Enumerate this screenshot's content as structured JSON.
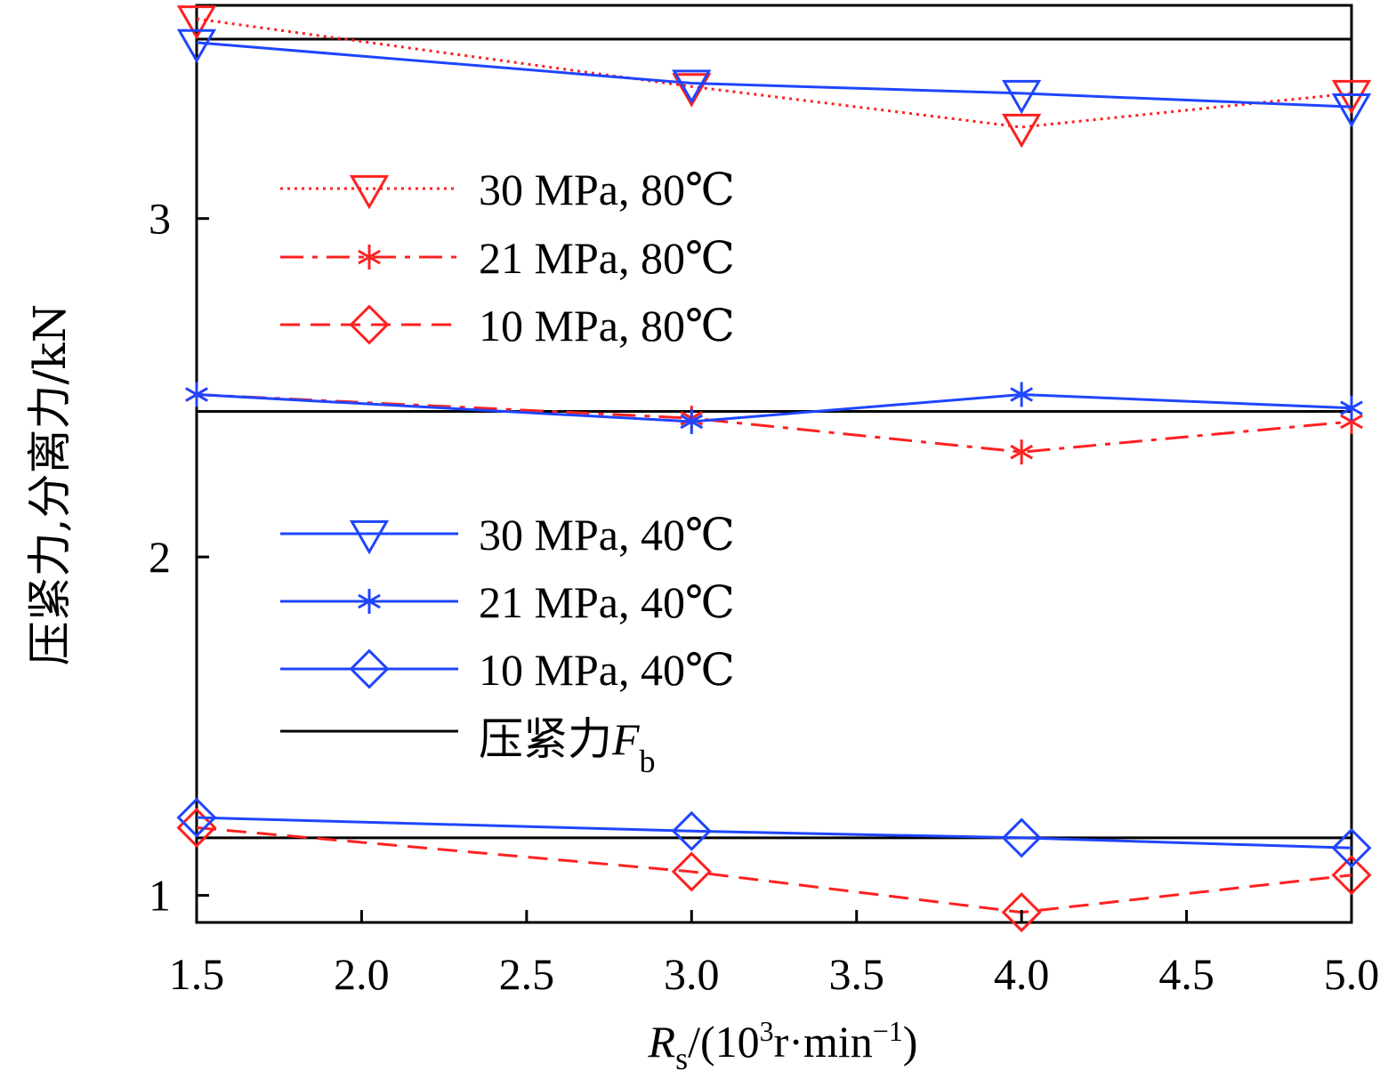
{
  "chart_data": {
    "type": "line",
    "title": "",
    "xlabel": {
      "main": "R",
      "sub": "s",
      "rest_prefix": "/(10",
      "sup1": "3",
      "rest_mid": "r·min",
      "sup2": "−1",
      "rest_suffix": ")"
    },
    "ylabel": "压紧力,分离力/kN",
    "xlim": [
      1.5,
      5.0
    ],
    "ylim": [
      0.92,
      3.63
    ],
    "x_ticks": [
      1.5,
      2.0,
      2.5,
      3.0,
      3.5,
      4.0,
      4.5,
      5.0
    ],
    "x_tick_labels": [
      "1.5",
      "2.0",
      "2.5",
      "3.0",
      "3.5",
      "4.0",
      "4.5",
      "5.0"
    ],
    "y_ticks": [
      1,
      2,
      3
    ],
    "y_tick_labels": [
      "1",
      "2",
      "3"
    ],
    "x": [
      1.5,
      3.0,
      4.0,
      5.0
    ],
    "series": [
      {
        "name": "30 MPa, 80℃",
        "color": "#ff2020",
        "dash": "dotted",
        "marker": "triangle-down",
        "values": [
          3.59,
          3.39,
          3.27,
          3.37
        ]
      },
      {
        "name": "21 MPa, 80℃",
        "color": "#ff2020",
        "dash": "dashdot",
        "marker": "asterisk",
        "values": [
          2.48,
          2.41,
          2.31,
          2.4
        ]
      },
      {
        "name": "10 MPa, 80℃",
        "color": "#ff2020",
        "dash": "dashed",
        "marker": "diamond",
        "values": [
          1.2,
          1.07,
          0.95,
          1.06
        ]
      },
      {
        "name": "30 MPa, 40℃",
        "color": "#1f45ff",
        "dash": "solid",
        "marker": "triangle-down",
        "values": [
          3.52,
          3.4,
          3.37,
          3.33
        ]
      },
      {
        "name": "21 MPa, 40℃",
        "color": "#1f45ff",
        "dash": "solid",
        "marker": "asterisk",
        "values": [
          2.48,
          2.4,
          2.48,
          2.44
        ]
      },
      {
        "name": "10 MPa, 40℃",
        "color": "#1f45ff",
        "dash": "solid",
        "marker": "diamond",
        "values": [
          1.23,
          1.19,
          1.17,
          1.14
        ]
      }
    ],
    "reference_lines": {
      "name": "压紧力",
      "symbol": "F",
      "symbol_sub": "b",
      "color": "#000000",
      "values": [
        3.53,
        2.43,
        1.17
      ]
    },
    "legend": {
      "position": "center-left",
      "entries": [
        "30 MPa, 80℃",
        "21 MPa, 80℃",
        "10 MPa, 80℃",
        "30 MPa, 40℃",
        "21 MPa, 40℃",
        "10 MPa, 40℃",
        "压紧力F_b"
      ]
    }
  }
}
